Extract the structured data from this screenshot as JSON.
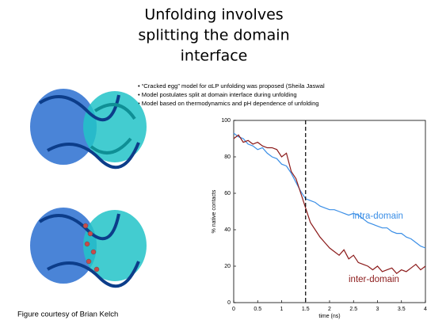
{
  "slide": {
    "title": [
      "Unfolding involves",
      "splitting the domain",
      "interface"
    ],
    "bullets": [
      "• “Cracked egg” model for αLP unfolding was proposed (Sheila Jaswal",
      "• Model postulates split at domain interface during unfolding",
      "• Model based on thermodynamics and pH dependence of unfolding"
    ],
    "caption": "Figure courtesy of Brian Kelch"
  },
  "chart_data": {
    "type": "line",
    "x_label": "time (ns)",
    "y_label": "% native contacts",
    "x": [
      0,
      0.1,
      0.2,
      0.3,
      0.4,
      0.5,
      0.6,
      0.7,
      0.8,
      0.9,
      1,
      1.1,
      1.2,
      1.3,
      1.4,
      1.5,
      1.6,
      1.7,
      1.8,
      1.9,
      2,
      2.1,
      2.2,
      2.3,
      2.4,
      2.5,
      2.6,
      2.7,
      2.8,
      2.9,
      3,
      3.1,
      3.2,
      3.3,
      3.4,
      3.5,
      3.6,
      3.7,
      3.8,
      3.9,
      4
    ],
    "series": [
      {
        "name": "intra-domain",
        "color": "#3a8ee6",
        "values": [
          93,
          91,
          90,
          87,
          86,
          84,
          85,
          82,
          80,
          79,
          76,
          75,
          71,
          66,
          61,
          57,
          56,
          55,
          53,
          52,
          51,
          51,
          50,
          49,
          48,
          49,
          48,
          46,
          44,
          43,
          42,
          41,
          41,
          39,
          38,
          38,
          36,
          35,
          33,
          31,
          30
        ]
      },
      {
        "name": "inter-domain",
        "color": "#8b1a1a",
        "values": [
          90,
          92,
          88,
          89,
          87,
          88,
          86,
          85,
          85,
          84,
          80,
          82,
          72,
          68,
          60,
          52,
          44,
          40,
          36,
          33,
          30,
          28,
          26,
          29,
          24,
          26,
          22,
          21,
          20,
          18,
          20,
          17,
          18,
          19,
          16,
          18,
          17,
          19,
          21,
          18,
          20
        ]
      }
    ],
    "vline": 1.5,
    "xlim": [
      0,
      4
    ],
    "xticks": [
      0,
      0.5,
      1,
      1.5,
      2,
      2.5,
      3,
      3.5,
      4
    ],
    "ylim": [
      0,
      100
    ],
    "yticks": [
      0,
      20,
      40,
      60,
      80,
      100
    ]
  }
}
